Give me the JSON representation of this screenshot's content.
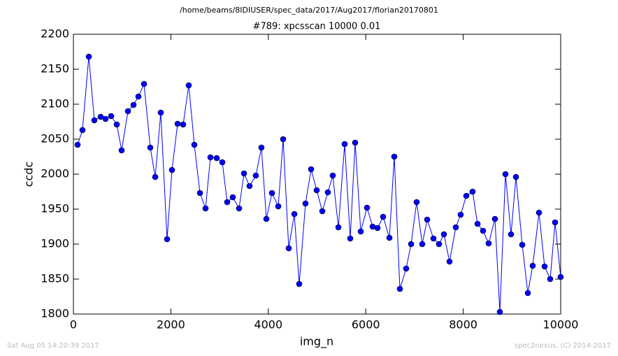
{
  "chart_data": {
    "type": "line",
    "suptitle": "/home/beams/8IDIUSER/spec_data/2017/Aug2017/florian20170801",
    "title": "#789: xpcsscan 10000 0.01",
    "xlabel": "img_n",
    "ylabel": "ccdc",
    "footer_left": "Sat Aug 05 14:20:39 2017",
    "footer_right": "spec2nexus, (C) 2014-2017",
    "color": "#0000ff",
    "marker": "circle",
    "x": [
      86,
      186,
      316,
      430,
      560,
      660,
      775,
      890,
      990,
      1119,
      1234,
      1334,
      1449,
      1578,
      1679,
      1793,
      1922,
      2023,
      2138,
      2252,
      2367,
      2482,
      2597,
      2712,
      2812,
      2941,
      3056,
      3156,
      3271,
      3400,
      3501,
      3615,
      3744,
      3859,
      3960,
      4075,
      4204,
      4304,
      4419,
      4534,
      4634,
      4763,
      4878,
      4993,
      5108,
      5222,
      5323,
      5438,
      5567,
      5681,
      5782,
      5897,
      6026,
      6141,
      6241,
      6356,
      6485,
      6585,
      6700,
      6829,
      6930,
      7044,
      7159,
      7260,
      7389,
      7504,
      7604,
      7719,
      7848,
      7948,
      8063,
      8192,
      8293,
      8407,
      8522,
      8651,
      8752,
      8867,
      8981,
      9082,
      9211,
      9326,
      9426,
      9555,
      9670,
      9785,
      9885,
      10000
    ],
    "values": [
      2042,
      2063,
      2168,
      2077,
      2082,
      2079,
      2083,
      2071,
      2034,
      2090,
      2099,
      2111,
      2129,
      2038,
      1996,
      2088,
      1907,
      2006,
      2072,
      2071,
      2127,
      2042,
      1973,
      1951,
      2024,
      2023,
      2017,
      1960,
      1967,
      1951,
      2001,
      1983,
      1998,
      2038,
      1936,
      1973,
      1954,
      2050,
      1894,
      1943,
      1843,
      1958,
      2007,
      1977,
      1947,
      1974,
      1998,
      1924,
      2043,
      1908,
      2045,
      1918,
      1952,
      1925,
      1923,
      1939,
      1909,
      2025,
      1836,
      1865,
      1900,
      1960,
      1900,
      1935,
      1908,
      1900,
      1914,
      1875,
      1924,
      1942,
      1969,
      1975,
      1929,
      1919,
      1901,
      1936,
      1803,
      2000,
      1914,
      1996,
      1899,
      1830,
      1869,
      1945,
      1868,
      1850,
      1931,
      1853
    ],
    "xlim": [
      0,
      10000
    ],
    "xticks": [
      0,
      2000,
      4000,
      6000,
      8000,
      10000
    ],
    "ylim": [
      1800,
      2200
    ],
    "yticks": [
      1800,
      1850,
      1900,
      1950,
      2000,
      2050,
      2100,
      2150,
      2200
    ]
  }
}
